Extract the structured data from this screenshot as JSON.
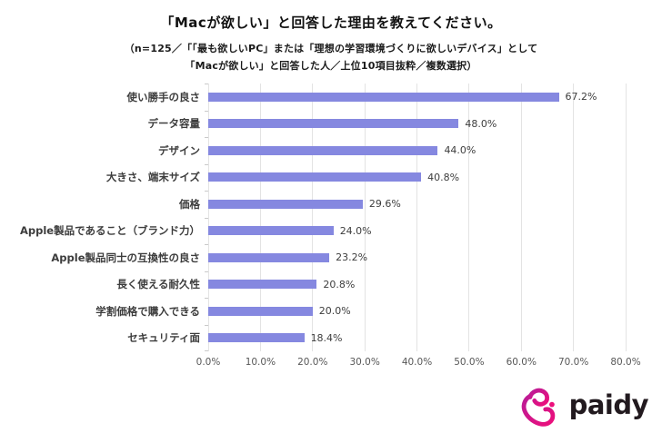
{
  "chart_data": {
    "type": "bar",
    "orientation": "horizontal",
    "title": "「Macが欲しい」と回答した理由を教えてください。",
    "subtitle_line1": "（n=125／「「最も欲しいPC」または「理想の学習環境づくりに欲しいデバイス」として",
    "subtitle_line2": "「Macが欲しい」と回答した人／上位10項目抜粋／複数選択）",
    "categories": [
      "使い勝手の良さ",
      "データ容量",
      "デザイン",
      "大きさ、端末サイズ",
      "価格",
      "Apple製品であること（ブランド力）",
      "Apple製品同士の互換性の良さ",
      "長く使える耐久性",
      "学割価格で購入できる",
      "セキュリティ面"
    ],
    "values": [
      67.2,
      48.0,
      44.0,
      40.8,
      29.6,
      24.0,
      23.2,
      20.8,
      20.0,
      18.4
    ],
    "value_labels": [
      "67.2%",
      "48.0%",
      "44.0%",
      "40.8%",
      "29.6%",
      "24.0%",
      "23.2%",
      "20.8%",
      "20.0%",
      "18.4%"
    ],
    "x_ticks": [
      "0.0%",
      "10.0%",
      "20.0%",
      "30.0%",
      "40.0%",
      "50.0%",
      "60.0%",
      "70.0%",
      "80.0%"
    ],
    "xlim": [
      0,
      80
    ],
    "grid": "vertical",
    "legend": "none",
    "bar_color": "#8588e0"
  },
  "logo": {
    "icon": "paidy-heart-icon",
    "text": "paidy",
    "brand_color_start": "#bb1b96",
    "brand_color_end": "#ec0f7b",
    "text_color": "#221a1f"
  }
}
